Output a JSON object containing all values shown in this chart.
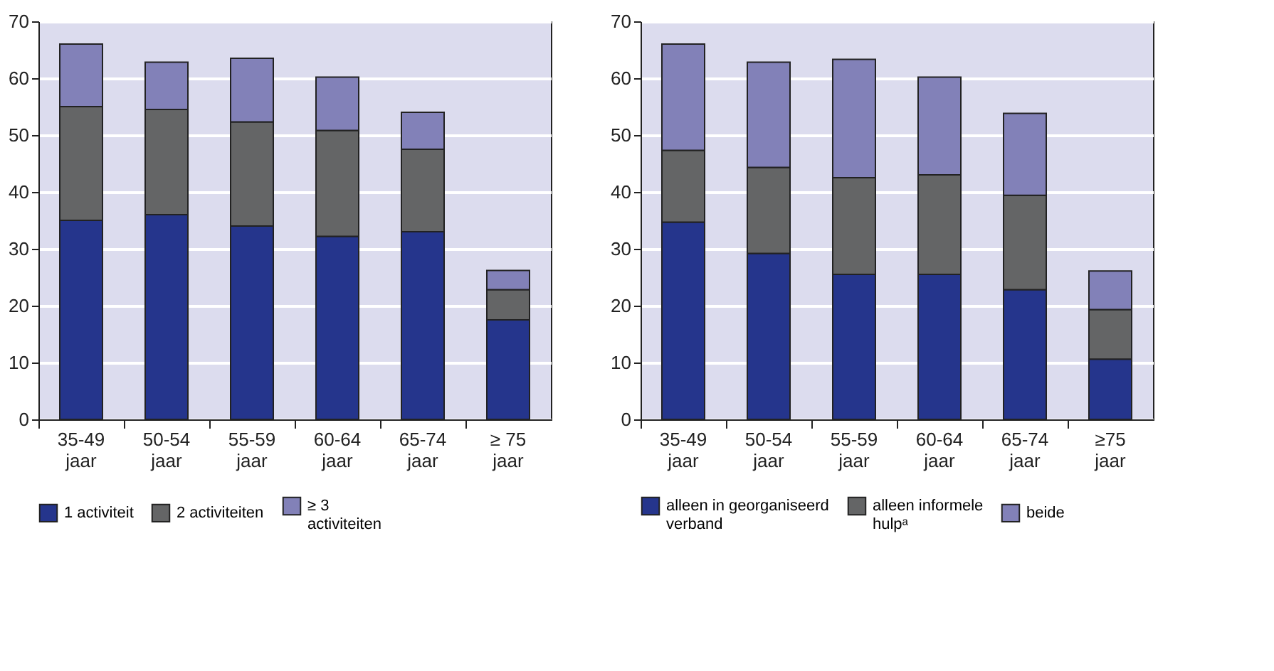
{
  "chart_data": [
    {
      "type": "bar",
      "stacked": true,
      "categories": [
        "35-49 jaar",
        "50-54 jaar",
        "55-59 jaar",
        "60-64 jaar",
        "65-74 jaar",
        "≥ 75 jaar"
      ],
      "ylim": [
        0,
        70
      ],
      "yticks": [
        0,
        10,
        20,
        30,
        40,
        50,
        60,
        70
      ],
      "grid": "y",
      "legend": "bottom",
      "series": [
        {
          "name": "1 activiteit",
          "color": "#25358c",
          "values": [
            35,
            36,
            34,
            32.2,
            33,
            17.5
          ]
        },
        {
          "name": "2 activiteiten",
          "color": "#646566",
          "values": [
            20,
            18.5,
            18.3,
            18.6,
            14.5,
            5.3
          ]
        },
        {
          "name": "≥ 3 activiteiten",
          "color": "#8281b8",
          "values": [
            11,
            8.3,
            11.2,
            9.4,
            6.5,
            3.4
          ]
        }
      ]
    },
    {
      "type": "bar",
      "stacked": true,
      "categories": [
        "35-49 jaar",
        "50-54 jaar",
        "55-59 jaar",
        "60-64 jaar",
        "65-74 jaar",
        "≥75 jaar"
      ],
      "ylim": [
        0,
        70
      ],
      "yticks": [
        0,
        10,
        20,
        30,
        40,
        50,
        60,
        70
      ],
      "grid": "y",
      "legend": "bottom",
      "series": [
        {
          "name": "alleen in georganiseerd verband",
          "color": "#25358c",
          "values": [
            34.7,
            29.2,
            25.5,
            25.5,
            22.8,
            10.6
          ]
        },
        {
          "name": "alleen informele hulpᵃ",
          "color": "#646566",
          "values": [
            12.6,
            15.1,
            17,
            17.5,
            16.6,
            8.7
          ]
        },
        {
          "name": "beide",
          "color": "#8281b8",
          "values": [
            18.7,
            18.5,
            20.8,
            17.2,
            14.4,
            6.8
          ]
        }
      ]
    }
  ]
}
